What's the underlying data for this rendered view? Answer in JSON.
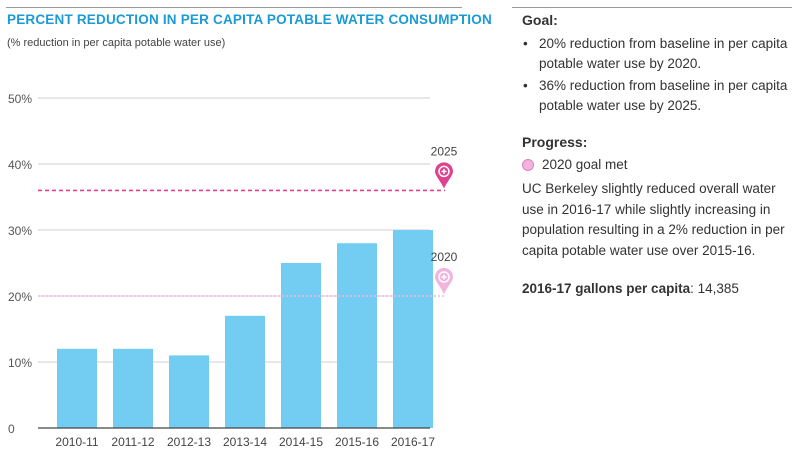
{
  "chart_data": {
    "type": "bar",
    "title": "PERCENT REDUCTION IN PER CAPITA POTABLE WATER CONSUMPTION",
    "subtitle": "(% reduction in per capita potable water use)",
    "categories": [
      "2010-11",
      "2011-12",
      "2012-13",
      "2013-14",
      "2014-15",
      "2015-16",
      "2016-17"
    ],
    "values": [
      12,
      12,
      11,
      17,
      25,
      28,
      30
    ],
    "ylim": [
      0,
      50
    ],
    "yticks": [
      0,
      10,
      20,
      30,
      40,
      50
    ],
    "ytick_labels": [
      "0",
      "10%",
      "20%",
      "30%",
      "40%",
      "50%"
    ],
    "grid": true,
    "bar_color": "#73cdf3",
    "goal_lines": [
      {
        "label": "2025",
        "value": 36,
        "color": "#e0418f"
      },
      {
        "label": "2020",
        "value": 20,
        "color": "#f4b3de"
      }
    ]
  },
  "goal": {
    "title": "Goal:",
    "items": [
      "20% reduction from baseline in per capita potable water use by 2020.",
      "36% reduction from baseline in per capita potable water use by 2025."
    ]
  },
  "progress": {
    "title": "Progress:",
    "status": "2020 goal met",
    "description": "UC Berkeley slightly reduced overall water use in 2016-17 while slightly increasing in population resulting in a 2% reduction in per capita potable water use over 2015-16."
  },
  "per_capita": {
    "label": "2016-17 gallons per capita",
    "value": ": 14,385"
  }
}
